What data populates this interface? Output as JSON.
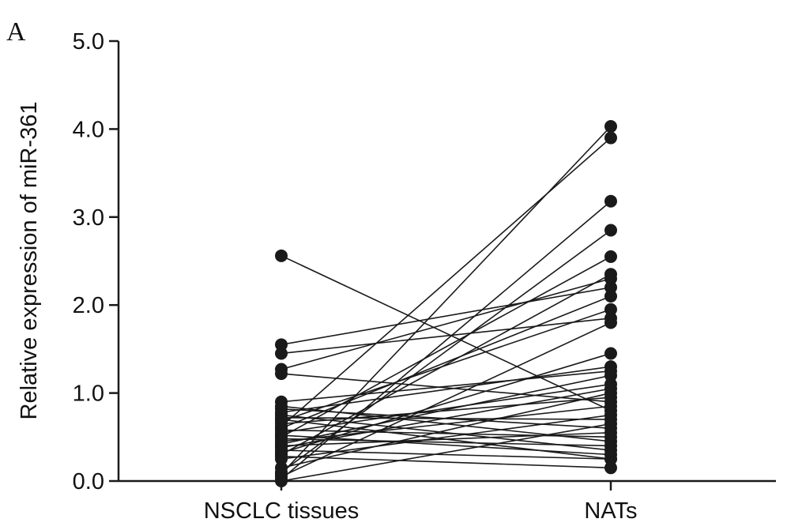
{
  "panel_label": "A",
  "chart_data": {
    "type": "scatter",
    "title": "",
    "xlabel": "",
    "ylabel": "Relative expression of miR-361",
    "categories": [
      "NSCLC tissues",
      "NATs"
    ],
    "ylim": [
      0,
      5
    ],
    "yticks": [
      "0.0",
      "1.0",
      "2.0",
      "3.0",
      "4.0",
      "5.0"
    ],
    "ytick_values": [
      0,
      1,
      2,
      3,
      4,
      5
    ],
    "grid": false,
    "legend": "none",
    "colors": {
      "points": "#1a1a1a",
      "lines": "#1a1a1a",
      "axis": "#1a1a1a"
    },
    "pairs": [
      [
        2.56,
        0.8
      ],
      [
        1.55,
        2.2
      ],
      [
        1.45,
        1.85
      ],
      [
        1.27,
        2.3
      ],
      [
        1.22,
        0.9
      ],
      [
        0.9,
        1.25
      ],
      [
        0.85,
        0.45
      ],
      [
        0.82,
        0.6
      ],
      [
        0.78,
        1.3
      ],
      [
        0.75,
        0.35
      ],
      [
        0.72,
        0.7
      ],
      [
        0.7,
        0.25
      ],
      [
        0.68,
        1.95
      ],
      [
        0.65,
        0.95
      ],
      [
        0.62,
        3.9
      ],
      [
        0.6,
        2.1
      ],
      [
        0.58,
        0.5
      ],
      [
        0.55,
        1.1
      ],
      [
        0.52,
        0.3
      ],
      [
        0.5,
        2.55
      ],
      [
        0.48,
        0.4
      ],
      [
        0.45,
        0.85
      ],
      [
        0.42,
        1.2
      ],
      [
        0.4,
        0.55
      ],
      [
        0.38,
        1.05
      ],
      [
        0.35,
        0.25
      ],
      [
        0.32,
        1.45
      ],
      [
        0.3,
        2.35
      ],
      [
        0.28,
        0.15
      ],
      [
        0.25,
        0.75
      ],
      [
        0.15,
        1.0
      ],
      [
        0.1,
        2.85
      ],
      [
        0.08,
        4.03
      ],
      [
        0.05,
        1.8
      ],
      [
        0.02,
        3.18
      ],
      [
        0.0,
        0.65
      ]
    ]
  }
}
